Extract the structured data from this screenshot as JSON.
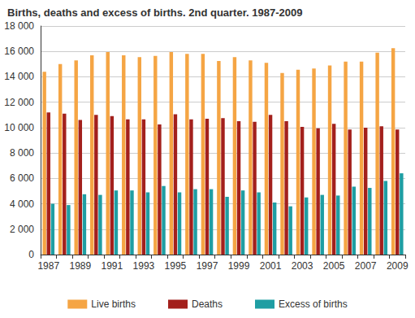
{
  "chart_data": {
    "type": "bar",
    "title": "Births, deaths and excess of births. 2nd quarter. 1987-2009",
    "categories": [
      "1987",
      null,
      "1989",
      null,
      "1991",
      null,
      "1993",
      null,
      "1995",
      null,
      "1997",
      null,
      "1999",
      null,
      "2001",
      null,
      "2003",
      null,
      "2005",
      null,
      "2007",
      null,
      "2009"
    ],
    "series": [
      {
        "name": "Live births",
        "color": "#f5a544",
        "values": [
          14400,
          15000,
          15300,
          15700,
          15950,
          15700,
          15550,
          15650,
          15950,
          15800,
          15800,
          15250,
          15550,
          15300,
          15100,
          14300,
          14550,
          14650,
          14900,
          15200,
          15200,
          15900,
          16250
        ]
      },
      {
        "name": "Deaths",
        "color": "#a3201c",
        "values": [
          11200,
          11100,
          10600,
          11000,
          10900,
          10650,
          10650,
          10250,
          11050,
          10650,
          10700,
          10750,
          10500,
          10450,
          11000,
          10500,
          10050,
          9950,
          10300,
          9850,
          10000,
          10100,
          9850
        ]
      },
      {
        "name": "Excess of births",
        "color": "#1f9ea3",
        "values": [
          4000,
          3900,
          4750,
          4700,
          5050,
          5050,
          4900,
          5400,
          4900,
          5150,
          5150,
          4550,
          5050,
          4900,
          4100,
          3800,
          4500,
          4700,
          4650,
          5350,
          5250,
          5800,
          6400
        ]
      }
    ],
    "ylim": [
      0,
      18000
    ],
    "yticks": [
      0,
      {
        "value": 2000,
        "label": "2 000"
      },
      {
        "value": 4000,
        "label": "4 000"
      },
      {
        "value": 6000,
        "label": "6 000"
      },
      {
        "value": 8000,
        "label": "8 000"
      },
      {
        "value": 10000,
        "label": "10 000"
      },
      {
        "value": 12000,
        "label": "12 000"
      },
      {
        "value": 14000,
        "label": "14 000"
      },
      {
        "value": 16000,
        "label": "16 000"
      },
      {
        "value": 18000,
        "label": "18 000"
      }
    ],
    "grid": true,
    "legend": "bottom"
  }
}
